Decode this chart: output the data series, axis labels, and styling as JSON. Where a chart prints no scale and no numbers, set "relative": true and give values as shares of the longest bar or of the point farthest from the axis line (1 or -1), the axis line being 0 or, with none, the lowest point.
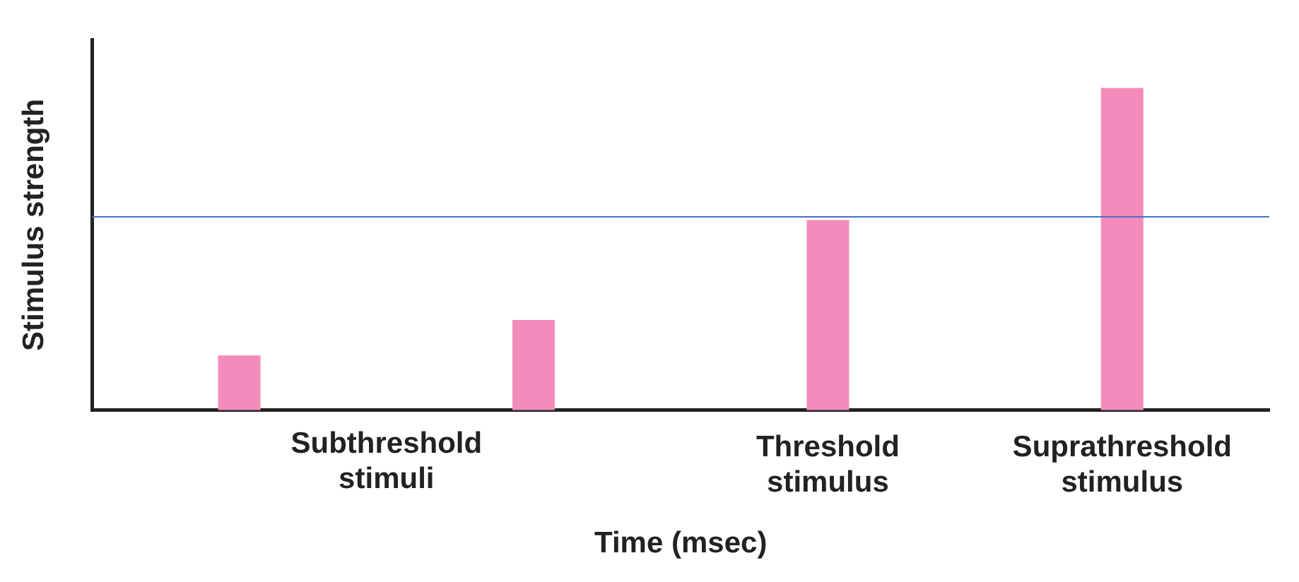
{
  "chart_data": {
    "type": "bar",
    "relative": true,
    "xlabel": "Time (msec)",
    "ylabel": "Stimulus strength",
    "categories": [
      null,
      null,
      "Threshold stimulus",
      "Suprathreshold stimulus"
    ],
    "values": [
      0.17,
      0.28,
      0.59,
      1
    ],
    "color": "#f48cbb",
    "ref_lines": [
      {
        "axis": "y",
        "value": 0.6,
        "color": "#4a72c4"
      }
    ],
    "annotations": [
      "Subthreshold stimuli"
    ],
    "grid": false,
    "legend": false
  }
}
